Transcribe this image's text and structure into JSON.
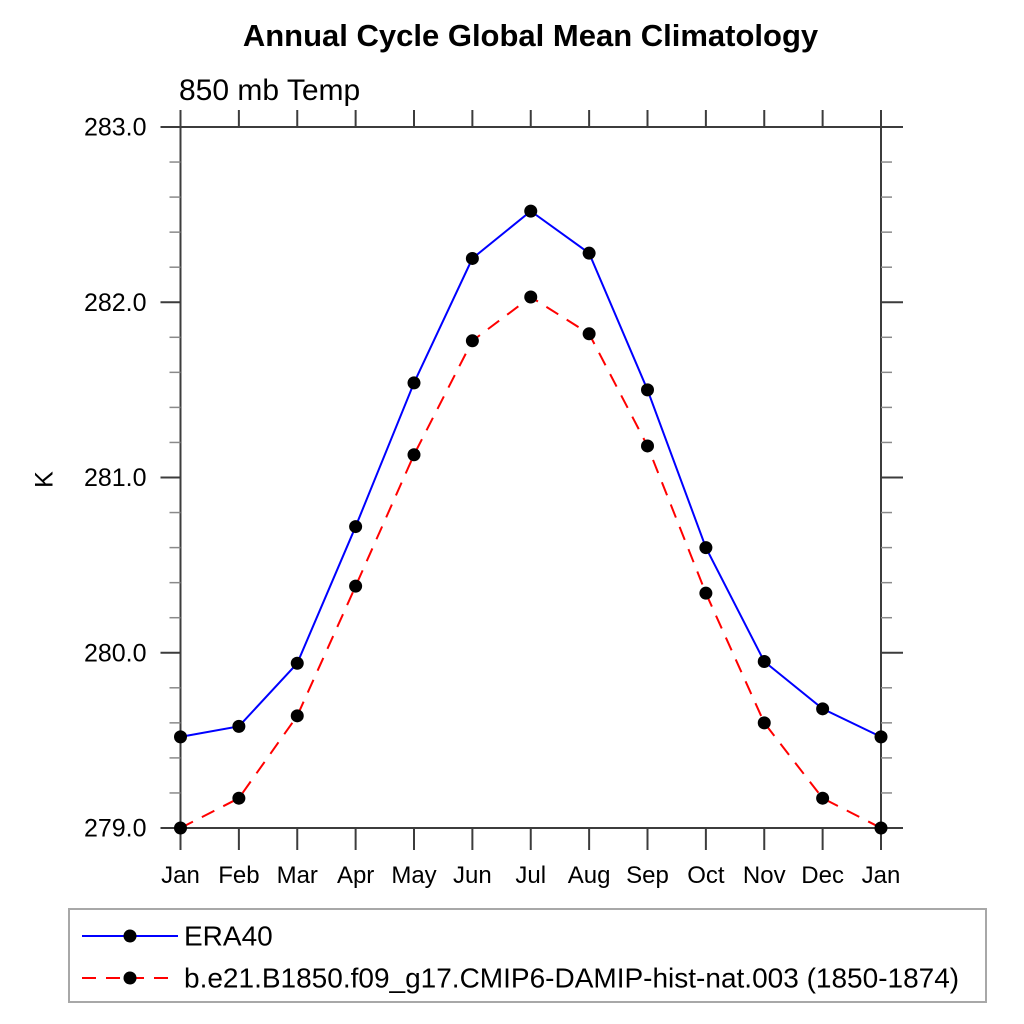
{
  "chart_data": {
    "type": "line",
    "title": "Annual Cycle Global Mean Climatology",
    "subtitle": "850 mb Temp",
    "ylabel": "K",
    "xlabel": "",
    "x_tick_labels": [
      "Jan",
      "Feb",
      "Mar",
      "Apr",
      "May",
      "Jun",
      "Jul",
      "Aug",
      "Sep",
      "Oct",
      "Nov",
      "Dec",
      "Jan"
    ],
    "ylim": [
      279.0,
      283.0
    ],
    "y_major_ticks": [
      279.0,
      280.0,
      281.0,
      282.0,
      283.0
    ],
    "y_tick_labels": [
      "279.0",
      "280.0",
      "281.0",
      "282.0",
      "283.0"
    ],
    "y_minor_ticks": [
      279.2,
      279.4,
      279.6,
      279.8,
      280.2,
      280.4,
      280.6,
      280.8,
      281.2,
      281.4,
      281.6,
      281.8,
      282.2,
      282.4,
      282.6,
      282.8
    ],
    "grid": false,
    "legend_position": "bottom",
    "series": [
      {
        "name": "ERA40",
        "line_color": "#0000ff",
        "line_style": "solid",
        "marker": "circle",
        "marker_color": "#000000",
        "values": [
          279.52,
          279.58,
          279.94,
          280.72,
          281.54,
          282.25,
          282.52,
          282.28,
          281.5,
          280.6,
          279.95,
          279.68,
          279.52
        ]
      },
      {
        "name": "b.e21.B1850.f09_g17.CMIP6-DAMIP-hist-nat.003 (1850-1874)",
        "line_color": "#ff0000",
        "line_style": "dashed",
        "marker": "circle",
        "marker_color": "#000000",
        "values": [
          279.0,
          279.17,
          279.64,
          280.38,
          281.13,
          281.78,
          282.03,
          281.82,
          281.18,
          280.34,
          279.6,
          279.17,
          279.0
        ]
      }
    ],
    "colors": {
      "axis": "#3c3c3c",
      "minor_tick": "#8a8a8a",
      "legend_border": "#a8a8a8",
      "background": "#ffffff",
      "text": "#000000"
    }
  }
}
